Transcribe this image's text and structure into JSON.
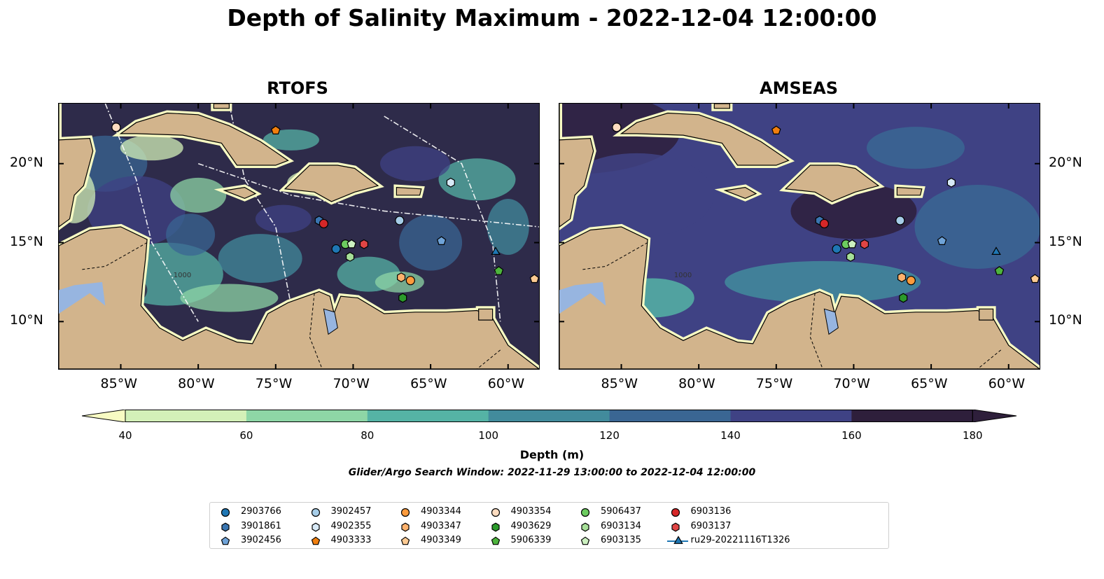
{
  "title": "Depth of Salinity Maximum - 2022-12-04 12:00:00",
  "panels": [
    {
      "title": "RTOFS",
      "fill": "#2e2b4a",
      "land_color": "#d2b48c"
    },
    {
      "title": "AMSEAS",
      "fill": "#3f4284",
      "land_color": "#d2b48c"
    }
  ],
  "axes": {
    "lon_labels": [
      "85°W",
      "80°W",
      "75°W",
      "70°W",
      "65°W",
      "60°W"
    ],
    "lat_labels": [
      "20°N",
      "15°N",
      "10°N"
    ],
    "contour_label": "1000"
  },
  "colorbar": {
    "label": "Depth (m)",
    "ticks": [
      "40",
      "60",
      "80",
      "100",
      "120",
      "140",
      "160",
      "180"
    ],
    "colors": [
      "#f8fbc3",
      "#d3f0b8",
      "#8ed6a6",
      "#55b3a5",
      "#428b9c",
      "#3a6693",
      "#3f4284",
      "#2e1f3b"
    ]
  },
  "search_window": "Glider/Argo Search Window: 2022-11-29 13:00:00 to 2022-12-04 12:00:00",
  "legend": [
    {
      "label": "2903766",
      "marker": "circle",
      "color": "#1f77b4"
    },
    {
      "label": "3901861",
      "marker": "hexagon",
      "color": "#3a75b0"
    },
    {
      "label": "3902456",
      "marker": "pentagon",
      "color": "#6fa3d8"
    },
    {
      "label": "3902457",
      "marker": "circle",
      "color": "#a6cde8"
    },
    {
      "label": "4902355",
      "marker": "hexagon",
      "color": "#d7e9f6"
    },
    {
      "label": "4903333",
      "marker": "pentagon",
      "color": "#f07f0e"
    },
    {
      "label": "4903344",
      "marker": "circle",
      "color": "#fd9b3c"
    },
    {
      "label": "4903347",
      "marker": "hexagon",
      "color": "#fdb16c"
    },
    {
      "label": "4903349",
      "marker": "pentagon",
      "color": "#fecb93"
    },
    {
      "label": "4903354",
      "marker": "circle",
      "color": "#fddcc0"
    },
    {
      "label": "4903629",
      "marker": "hexagon",
      "color": "#2b9a2b"
    },
    {
      "label": "5906339",
      "marker": "pentagon",
      "color": "#4db43d"
    },
    {
      "label": "5906437",
      "marker": "circle",
      "color": "#6ccc5f"
    },
    {
      "label": "6903134",
      "marker": "hexagon",
      "color": "#a6df98"
    },
    {
      "label": "6903135",
      "marker": "pentagon",
      "color": "#ccf0c0"
    },
    {
      "label": "6903136",
      "marker": "circle",
      "color": "#d62728"
    },
    {
      "label": "6903137",
      "marker": "hexagon",
      "color": "#e04545"
    },
    {
      "label": "ru29-20221116T1326",
      "marker": "triangle-line",
      "color": "#1f77b4"
    }
  ],
  "floats": [
    {
      "id": "4903354",
      "lon": -85.3,
      "lat": 22.3
    },
    {
      "id": "4903333",
      "lon": -75.0,
      "lat": 22.1
    },
    {
      "id": "4902355",
      "lon": -63.7,
      "lat": 18.8
    },
    {
      "id": "3901861",
      "lon": -72.2,
      "lat": 16.4
    },
    {
      "id": "6903136",
      "lon": -71.9,
      "lat": 16.2
    },
    {
      "id": "3902457",
      "lon": -67.0,
      "lat": 16.4
    },
    {
      "id": "3902456",
      "lon": -64.3,
      "lat": 15.1
    },
    {
      "id": "2903766",
      "lon": -71.1,
      "lat": 14.6
    },
    {
      "id": "5906437",
      "lon": -70.5,
      "lat": 14.9
    },
    {
      "id": "6903135",
      "lon": -70.1,
      "lat": 14.9
    },
    {
      "id": "6903134",
      "lon": -70.2,
      "lat": 14.1
    },
    {
      "id": "6903137",
      "lon": -69.3,
      "lat": 14.9
    },
    {
      "id": "4903347",
      "lon": -66.9,
      "lat": 12.8
    },
    {
      "id": "4903344",
      "lon": -66.3,
      "lat": 12.6
    },
    {
      "id": "4903629",
      "lon": -66.8,
      "lat": 11.5
    },
    {
      "id": "ru29-20221116T1326",
      "lon": -60.8,
      "lat": 14.4
    },
    {
      "id": "5906339",
      "lon": -60.6,
      "lat": 13.2
    },
    {
      "id": "4903349",
      "lon": -58.3,
      "lat": 12.7
    }
  ]
}
